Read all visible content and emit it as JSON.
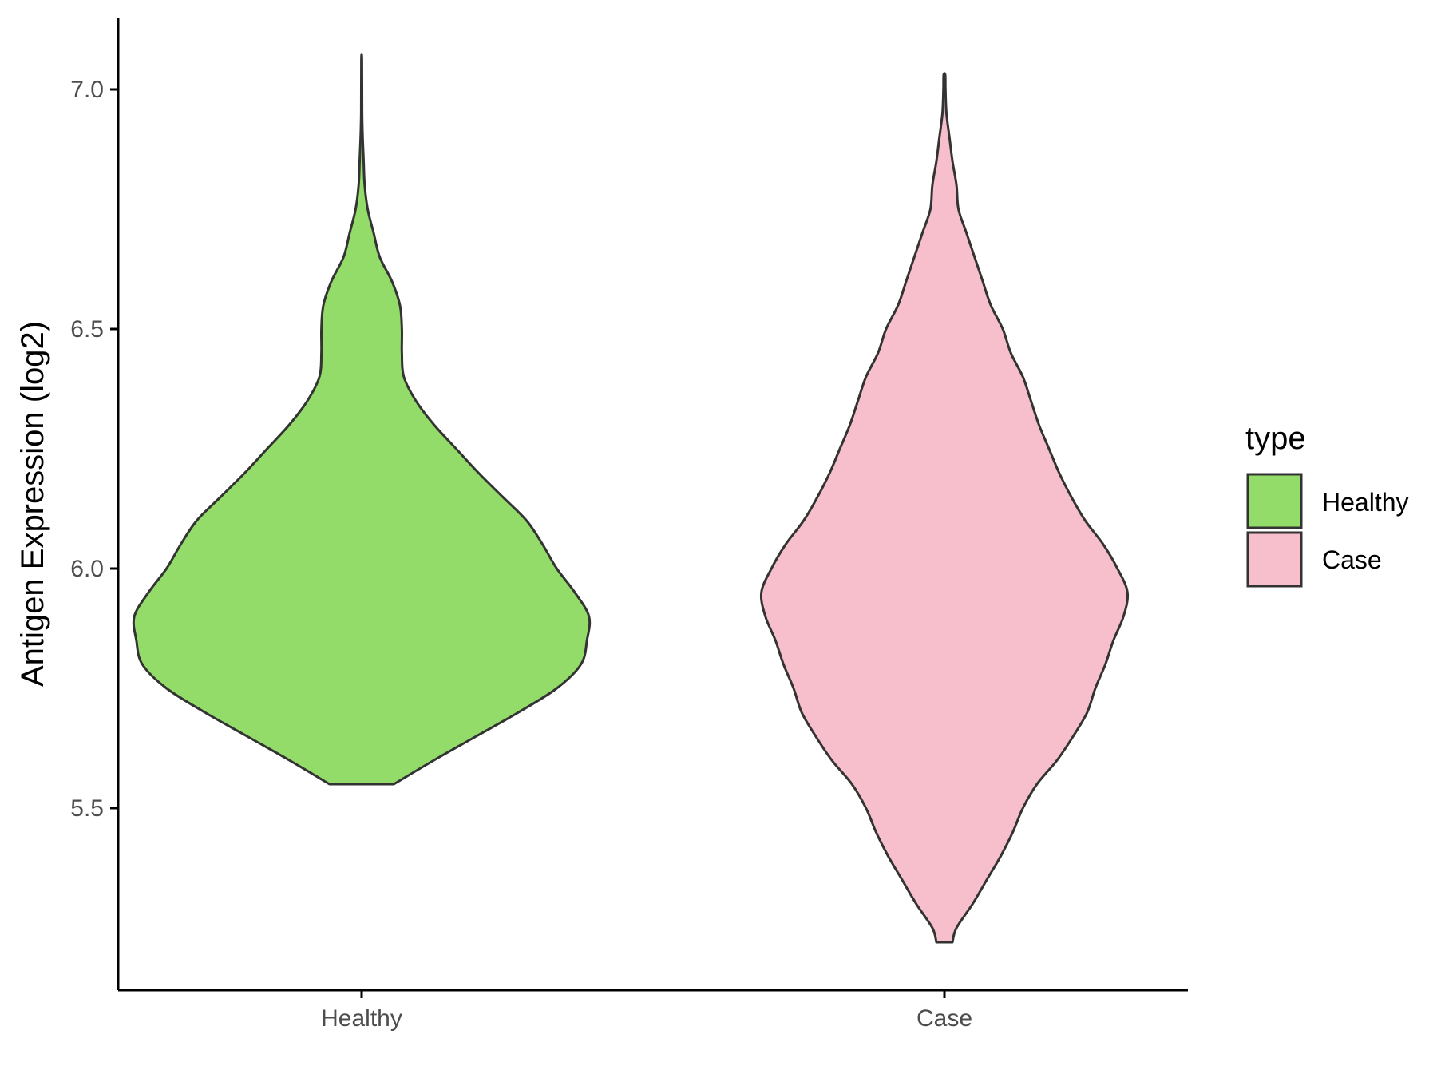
{
  "chart_data": {
    "type": "violin",
    "ylabel": "Antigen Expression (log2)",
    "xlabel": "",
    "ylim": [
      5.12,
      7.15
    ],
    "yticks": [
      5.5,
      6.0,
      6.5,
      7.0
    ],
    "ytick_labels": [
      "5.5",
      "6.0",
      "6.5",
      "7.0"
    ],
    "categories": [
      "Healthy",
      "Case"
    ],
    "grid": false,
    "legend": {
      "title": "type",
      "position": "right",
      "entries": [
        "Healthy",
        "Case"
      ]
    },
    "series": [
      {
        "name": "Healthy",
        "color": "#93dc6a",
        "min": 5.55,
        "max": 7.06,
        "profile": [
          [
            5.55,
            0.16
          ],
          [
            5.6,
            0.36
          ],
          [
            5.65,
            0.57
          ],
          [
            5.7,
            0.78
          ],
          [
            5.75,
            0.97
          ],
          [
            5.8,
            1.09
          ],
          [
            5.85,
            1.12
          ],
          [
            5.9,
            1.13
          ],
          [
            5.95,
            1.06
          ],
          [
            6.0,
            0.97
          ],
          [
            6.05,
            0.9
          ],
          [
            6.1,
            0.82
          ],
          [
            6.15,
            0.7
          ],
          [
            6.2,
            0.58
          ],
          [
            6.25,
            0.47
          ],
          [
            6.3,
            0.36
          ],
          [
            6.35,
            0.27
          ],
          [
            6.4,
            0.21
          ],
          [
            6.45,
            0.2
          ],
          [
            6.5,
            0.2
          ],
          [
            6.55,
            0.19
          ],
          [
            6.6,
            0.15
          ],
          [
            6.65,
            0.09
          ],
          [
            6.7,
            0.06
          ],
          [
            6.75,
            0.03
          ],
          [
            6.8,
            0.015
          ],
          [
            6.85,
            0.01
          ],
          [
            6.9,
            0.005
          ],
          [
            6.95,
            0.0025
          ],
          [
            7.06,
            0.0015
          ]
        ]
      },
      {
        "name": "Case",
        "color": "#f7bfcb",
        "min": 5.22,
        "max": 7.03,
        "profile": [
          [
            5.22,
            0.04
          ],
          [
            5.25,
            0.06
          ],
          [
            5.3,
            0.14
          ],
          [
            5.35,
            0.21
          ],
          [
            5.4,
            0.28
          ],
          [
            5.45,
            0.34
          ],
          [
            5.5,
            0.39
          ],
          [
            5.55,
            0.46
          ],
          [
            5.6,
            0.56
          ],
          [
            5.65,
            0.64
          ],
          [
            5.7,
            0.71
          ],
          [
            5.75,
            0.75
          ],
          [
            5.8,
            0.8
          ],
          [
            5.85,
            0.84
          ],
          [
            5.9,
            0.89
          ],
          [
            5.95,
            0.91
          ],
          [
            6.0,
            0.86
          ],
          [
            6.05,
            0.79
          ],
          [
            6.1,
            0.7
          ],
          [
            6.15,
            0.63
          ],
          [
            6.2,
            0.57
          ],
          [
            6.25,
            0.52
          ],
          [
            6.3,
            0.47
          ],
          [
            6.35,
            0.43
          ],
          [
            6.4,
            0.39
          ],
          [
            6.45,
            0.33
          ],
          [
            6.5,
            0.29
          ],
          [
            6.55,
            0.23
          ],
          [
            6.6,
            0.19
          ],
          [
            6.65,
            0.15
          ],
          [
            6.7,
            0.11
          ],
          [
            6.75,
            0.07
          ],
          [
            6.8,
            0.06
          ],
          [
            6.85,
            0.04
          ],
          [
            6.9,
            0.025
          ],
          [
            6.95,
            0.01
          ],
          [
            7.0,
            0.005
          ],
          [
            7.03,
            0.004
          ]
        ]
      }
    ]
  }
}
